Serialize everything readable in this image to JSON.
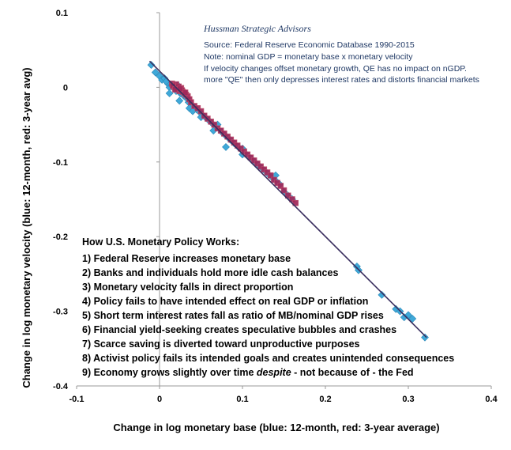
{
  "chart_data": {
    "type": "scatter",
    "xlabel": "Change in log monetary base (blue: 12-month, red: 3-year average)",
    "ylabel": "Change in log monetary velocity (blue: 12-month, red: 3-year avg)",
    "xlim": [
      -0.1,
      0.4
    ],
    "ylim": [
      -0.4,
      0.1
    ],
    "x_ticks": [
      -0.1,
      0,
      0.1,
      0.2,
      0.3,
      0.4
    ],
    "x_tick_labels": [
      "-0.1",
      "0",
      "0.1",
      "0.2",
      "0.3",
      "0.4"
    ],
    "y_ticks": [
      0.1,
      0,
      -0.1,
      -0.2,
      -0.3,
      -0.4
    ],
    "y_tick_labels": [
      "0.1",
      "0",
      "-0.1",
      "-0.2",
      "-0.3",
      "-0.4"
    ],
    "grid": false,
    "colors": {
      "blue": "#3fa9d9",
      "red": "#a0285a",
      "line": "#3a2f5f",
      "note": "#1f3864"
    },
    "series": [
      {
        "marker": "diamond",
        "color": "#3fa9d9",
        "points": [
          [
            -0.01,
            0.03
          ],
          [
            -0.005,
            0.02
          ],
          [
            0.0,
            0.015
          ],
          [
            0.003,
            0.01
          ],
          [
            0.006,
            0.012
          ],
          [
            0.01,
            0.005
          ],
          [
            0.012,
            0.0
          ],
          [
            0.015,
            0.002
          ],
          [
            0.018,
            -0.002
          ],
          [
            0.02,
            -0.005
          ],
          [
            0.022,
            0.003
          ],
          [
            0.025,
            -0.008
          ],
          [
            0.028,
            -0.01
          ],
          [
            0.03,
            -0.012
          ],
          [
            0.033,
            -0.015
          ],
          [
            0.035,
            -0.02
          ],
          [
            0.04,
            -0.025
          ],
          [
            0.045,
            -0.03
          ],
          [
            0.05,
            -0.035
          ],
          [
            0.055,
            -0.04
          ],
          [
            0.06,
            -0.045
          ],
          [
            0.065,
            -0.05
          ],
          [
            0.07,
            -0.05
          ],
          [
            0.075,
            -0.06
          ],
          [
            0.08,
            -0.065
          ],
          [
            0.085,
            -0.07
          ],
          [
            0.09,
            -0.075
          ],
          [
            0.095,
            -0.08
          ],
          [
            0.1,
            -0.082
          ],
          [
            0.105,
            -0.09
          ],
          [
            0.11,
            -0.095
          ],
          [
            0.115,
            -0.1
          ],
          [
            0.12,
            -0.105
          ],
          [
            0.125,
            -0.11
          ],
          [
            0.13,
            -0.115
          ],
          [
            0.135,
            -0.12
          ],
          [
            0.14,
            -0.125
          ],
          [
            0.145,
            -0.13
          ],
          [
            0.15,
            -0.14
          ],
          [
            0.155,
            -0.145
          ],
          [
            0.16,
            -0.15
          ],
          [
            0.08,
            -0.08
          ],
          [
            0.065,
            -0.058
          ],
          [
            0.05,
            -0.04
          ],
          [
            0.036,
            -0.028
          ],
          [
            0.012,
            -0.008
          ],
          [
            0.008,
            0.008
          ],
          [
            0.024,
            -0.018
          ],
          [
            0.04,
            -0.032
          ],
          [
            0.1,
            -0.09
          ],
          [
            0.238,
            -0.24
          ],
          [
            0.24,
            -0.245
          ],
          [
            0.268,
            -0.278
          ],
          [
            0.285,
            -0.297
          ],
          [
            0.29,
            -0.3
          ],
          [
            0.3,
            -0.305
          ],
          [
            0.305,
            -0.31
          ],
          [
            0.32,
            -0.335
          ],
          [
            0.295,
            -0.308
          ],
          [
            0.14,
            -0.118
          ]
        ]
      },
      {
        "marker": "square",
        "color": "#a0285a",
        "points": [
          [
            0.015,
            0.005
          ],
          [
            0.018,
            0.0
          ],
          [
            0.02,
            0.002
          ],
          [
            0.022,
            -0.003
          ],
          [
            0.024,
            -0.005
          ],
          [
            0.026,
            -0.001
          ],
          [
            0.028,
            -0.006
          ],
          [
            0.03,
            -0.008
          ],
          [
            0.032,
            -0.01
          ],
          [
            0.034,
            -0.012
          ],
          [
            0.036,
            -0.016
          ],
          [
            0.038,
            -0.02
          ],
          [
            0.042,
            -0.025
          ],
          [
            0.046,
            -0.028
          ],
          [
            0.05,
            -0.032
          ],
          [
            0.054,
            -0.038
          ],
          [
            0.058,
            -0.042
          ],
          [
            0.062,
            -0.046
          ],
          [
            0.066,
            -0.05
          ],
          [
            0.07,
            -0.055
          ],
          [
            0.074,
            -0.058
          ],
          [
            0.078,
            -0.062
          ],
          [
            0.082,
            -0.066
          ],
          [
            0.086,
            -0.07
          ],
          [
            0.09,
            -0.074
          ],
          [
            0.094,
            -0.078
          ],
          [
            0.098,
            -0.082
          ],
          [
            0.102,
            -0.086
          ],
          [
            0.106,
            -0.09
          ],
          [
            0.11,
            -0.094
          ],
          [
            0.114,
            -0.098
          ],
          [
            0.118,
            -0.102
          ],
          [
            0.122,
            -0.106
          ],
          [
            0.126,
            -0.11
          ],
          [
            0.13,
            -0.114
          ],
          [
            0.134,
            -0.118
          ],
          [
            0.138,
            -0.124
          ],
          [
            0.142,
            -0.128
          ],
          [
            0.146,
            -0.132
          ],
          [
            0.15,
            -0.138
          ],
          [
            0.155,
            -0.145
          ],
          [
            0.16,
            -0.15
          ],
          [
            0.164,
            -0.155
          ],
          [
            0.02,
            0.004
          ],
          [
            0.023,
            0.001
          ],
          [
            0.027,
            -0.004
          ],
          [
            0.031,
            -0.007
          ],
          [
            0.016,
            0.002
          ],
          [
            0.019,
            -0.003
          ],
          [
            0.025,
            -0.002
          ]
        ]
      }
    ],
    "fit_line": [
      [
        -0.012,
        0.035
      ],
      [
        0.322,
        -0.335
      ]
    ],
    "note_title": "Hussman Strategic Advisors",
    "note_lines": [
      "Source: Federal Reserve Economic Database 1990-2015",
      "Note: nominal GDP = monetary base x  monetary velocity",
      "If velocity changes offset monetary growth, QE has no impact on nGDP.",
      "more \"QE\" then only depresses interest rates and distorts financial markets"
    ],
    "steps_title": "How U.S. Monetary Policy Works:",
    "steps": [
      "1) Federal Reserve increases monetary base",
      "2) Banks and individuals hold more idle cash balances",
      "3) Monetary velocity falls in direct proportion",
      "4) Policy fails to have intended effect on real GDP or inflation",
      "5) Short term interest rates fall as ratio of MB/nominal GDP rises",
      "6) Financial yield-seeking creates speculative bubbles and crashes",
      "7) Scarce saving is diverted toward unproductive purposes",
      "8) Activist policy fails its intended goals and creates unintended consequences"
    ],
    "step9_before": "9) Economy grows slightly over time ",
    "step9_italic": "despite",
    "step9_after": " - not because of - the Fed"
  }
}
